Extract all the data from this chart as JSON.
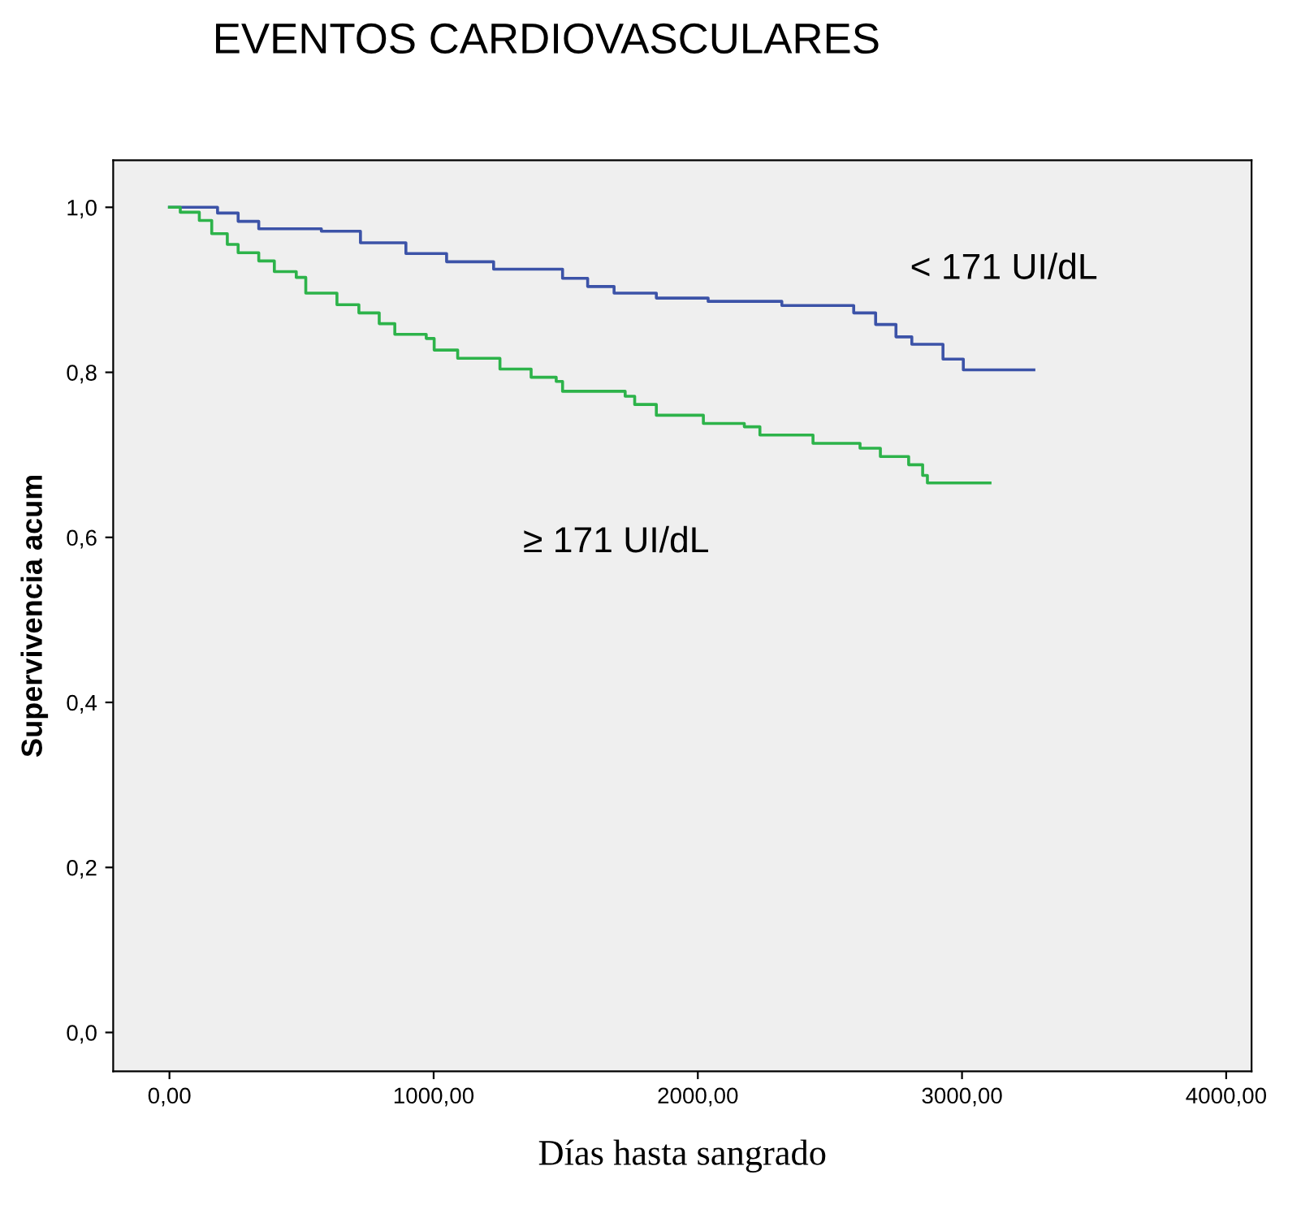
{
  "chart_data": {
    "type": "step",
    "title": "EVENTOS CARDIOVASCULARES",
    "xlabel": "Días hasta sangrado",
    "ylabel": "Supervivencia acum",
    "xlim": [
      -213,
      4096
    ],
    "ylim": [
      -0.047,
      1.057
    ],
    "xticks": [
      {
        "value": 0,
        "label": "0,00"
      },
      {
        "value": 1000,
        "label": "1000,00"
      },
      {
        "value": 2000,
        "label": "2000,00"
      },
      {
        "value": 3000,
        "label": "3000,00"
      },
      {
        "value": 4000,
        "label": "4000,00"
      }
    ],
    "yticks": [
      {
        "value": 0,
        "label": "0,0"
      },
      {
        "value": 0.2,
        "label": "0,2"
      },
      {
        "value": 0.4,
        "label": "0,4"
      },
      {
        "value": 0.6,
        "label": "0,6"
      },
      {
        "value": 0.8,
        "label": "0,8"
      },
      {
        "value": 1.0,
        "label": "1,0"
      }
    ],
    "grid": false,
    "legend": false,
    "series": [
      {
        "name": "< 171 UI/dL",
        "color": "#3c53a8",
        "x": [
          0,
          182,
          260,
          338,
          575,
          723,
          895,
          1049,
          1227,
          1488,
          1583,
          1683,
          1843,
          2039,
          2318,
          2590,
          2673,
          2750,
          2810,
          2928,
          3005,
          3272
        ],
        "values": [
          1.0,
          0.993,
          0.983,
          0.974,
          0.971,
          0.957,
          0.944,
          0.934,
          0.925,
          0.914,
          0.904,
          0.896,
          0.89,
          0.886,
          0.881,
          0.872,
          0.858,
          0.843,
          0.834,
          0.816,
          0.803,
          0.803
        ]
      },
      {
        "name": "≥ 171 UI/dL",
        "color": "#2db34a",
        "x": [
          0,
          41,
          113,
          160,
          219,
          260,
          338,
          397,
          480,
          516,
          634,
          717,
          794,
          853,
          972,
          1002,
          1091,
          1251,
          1369,
          1464,
          1488,
          1725,
          1761,
          1843,
          2021,
          2176,
          2235,
          2436,
          2614,
          2691,
          2798,
          2851,
          2869,
          3106
        ],
        "values": [
          1.0,
          0.994,
          0.984,
          0.968,
          0.955,
          0.945,
          0.935,
          0.922,
          0.915,
          0.896,
          0.882,
          0.872,
          0.859,
          0.846,
          0.841,
          0.827,
          0.817,
          0.804,
          0.794,
          0.789,
          0.777,
          0.771,
          0.761,
          0.748,
          0.738,
          0.734,
          0.724,
          0.714,
          0.708,
          0.698,
          0.688,
          0.675,
          0.666,
          0.666
        ]
      }
    ]
  }
}
